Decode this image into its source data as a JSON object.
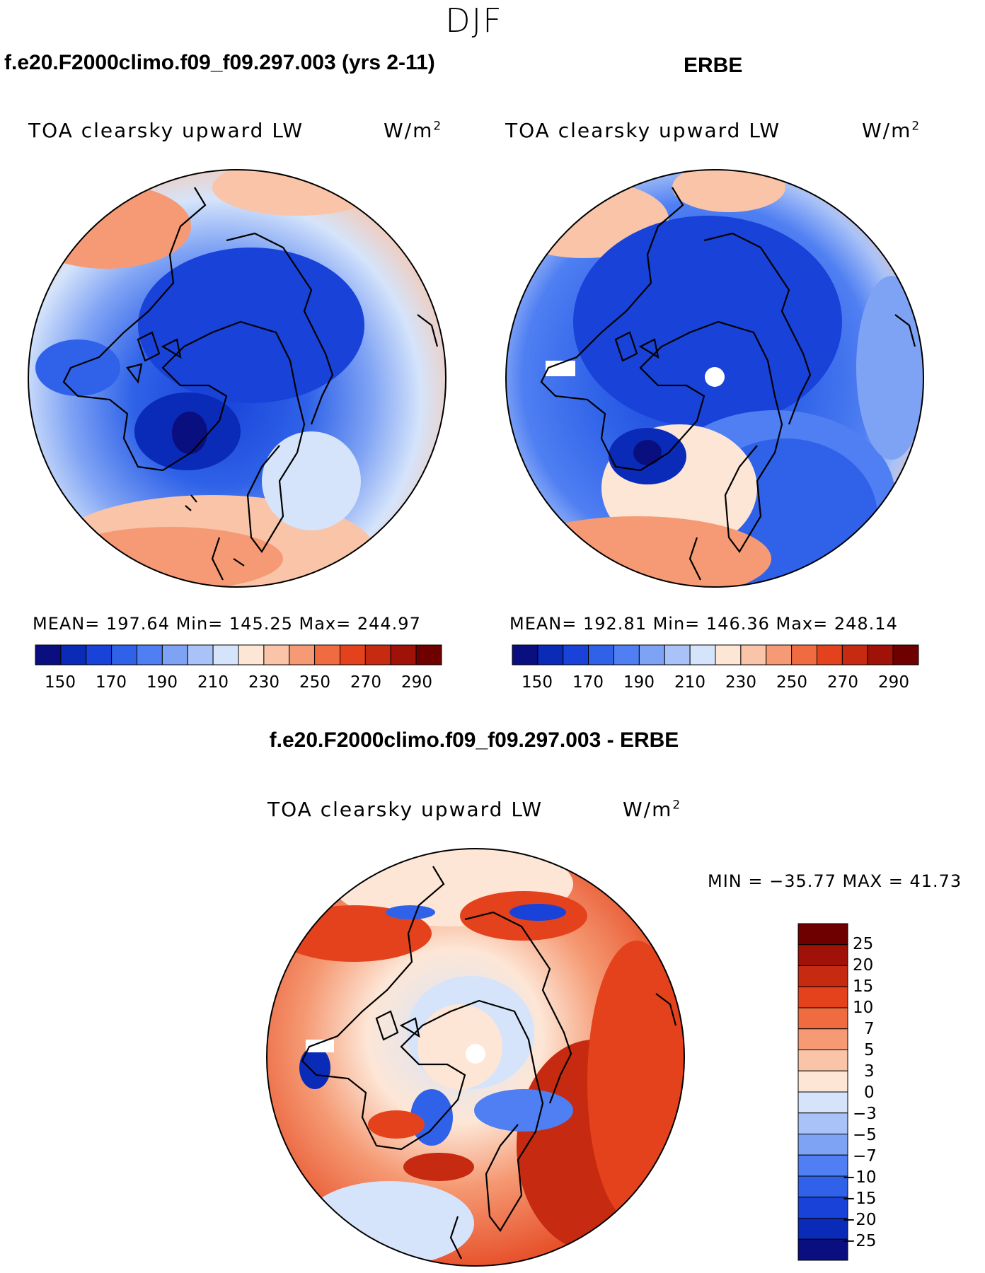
{
  "page": {
    "season": "DJF",
    "top_left_title": "f.e20.F2000climo.f09_f09.297.003 (yrs 2-11)",
    "top_right_title": "ERBE",
    "bottom_title": "f.e20.F2000climo.f09_f09.297.003 - ERBE"
  },
  "panels": {
    "left": {
      "variable": "TOA clearsky upward LW",
      "units": "W/m",
      "units_sup": "2",
      "stats": "MEAN= 197.64   Min= 145.25   Max= 244.97"
    },
    "right": {
      "variable": "TOA clearsky upward LW",
      "units": "W/m",
      "units_sup": "2",
      "stats": "MEAN= 192.81   Min= 146.36   Max= 248.14"
    },
    "diff": {
      "variable": "TOA clearsky upward LW",
      "units": "W/m",
      "units_sup": "2",
      "stats": "MIN = −35.77  MAX =   41.73"
    }
  },
  "chart_data": [
    {
      "type": "heatmap",
      "projection": "north polar stereographic",
      "title": "f.e20.F2000climo.f09_f09.297.003 (yrs 2-11)",
      "variable": "TOA clearsky upward LW",
      "units": "W/m^2",
      "mean": 197.64,
      "min": 145.25,
      "max": 244.97,
      "colorbar": {
        "levels": [
          150,
          160,
          170,
          180,
          190,
          200,
          210,
          220,
          230,
          240,
          250,
          260,
          270,
          280,
          290
        ],
        "tick_labels": [
          "150",
          "170",
          "190",
          "210",
          "230",
          "250",
          "270",
          "290"
        ],
        "colors": [
          "#0a0f80",
          "#0a2ab8",
          "#1842d8",
          "#2f62e8",
          "#4f7ff2",
          "#7ea2f4",
          "#a9c2f7",
          "#d5e4fb",
          "#fde6d6",
          "#f9c4a8",
          "#f59a74",
          "#f06c40",
          "#e4421c",
          "#c62a10",
          "#a01208",
          "#6e0000"
        ]
      }
    },
    {
      "type": "heatmap",
      "projection": "north polar stereographic",
      "title": "ERBE",
      "variable": "TOA clearsky upward LW",
      "units": "W/m^2",
      "mean": 192.81,
      "min": 146.36,
      "max": 248.14,
      "colorbar": {
        "levels": [
          150,
          160,
          170,
          180,
          190,
          200,
          210,
          220,
          230,
          240,
          250,
          260,
          270,
          280,
          290
        ],
        "tick_labels": [
          "150",
          "170",
          "190",
          "210",
          "230",
          "250",
          "270",
          "290"
        ],
        "colors": [
          "#0a0f80",
          "#0a2ab8",
          "#1842d8",
          "#2f62e8",
          "#4f7ff2",
          "#7ea2f4",
          "#a9c2f7",
          "#d5e4fb",
          "#fde6d6",
          "#f9c4a8",
          "#f59a74",
          "#f06c40",
          "#e4421c",
          "#c62a10",
          "#a01208",
          "#6e0000"
        ]
      }
    },
    {
      "type": "heatmap",
      "projection": "north polar stereographic",
      "title": "f.e20.F2000climo.f09_f09.297.003 - ERBE",
      "variable": "TOA clearsky upward LW",
      "units": "W/m^2",
      "min": -35.77,
      "max": 41.73,
      "colorbar": {
        "levels": [
          25,
          20,
          15,
          10,
          7,
          5,
          3,
          0,
          -3,
          -5,
          -7,
          -10,
          -15,
          -20,
          -25
        ],
        "tick_labels": [
          "25",
          "20",
          "15",
          "10",
          "7",
          "5",
          "3",
          "0",
          "−3",
          "−5",
          "−7",
          "−10",
          "−15",
          "−20",
          "−25"
        ],
        "colors": [
          "#6e0000",
          "#a01208",
          "#c62a10",
          "#e4421c",
          "#f06c40",
          "#f59a74",
          "#f9c4a8",
          "#fde6d6",
          "#d5e4fb",
          "#a9c2f7",
          "#7ea2f4",
          "#4f7ff2",
          "#2f62e8",
          "#1842d8",
          "#0a2ab8",
          "#0a0f80"
        ]
      }
    }
  ]
}
